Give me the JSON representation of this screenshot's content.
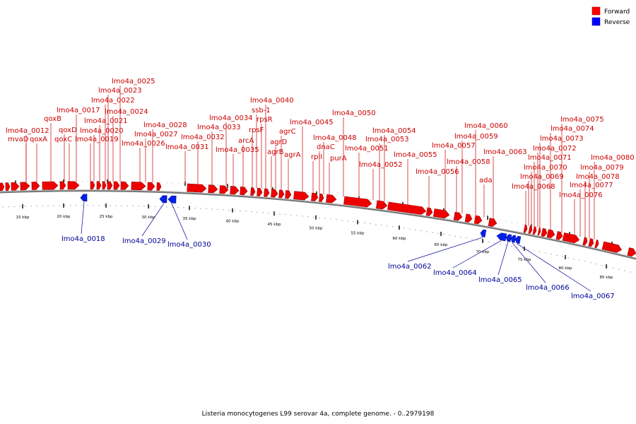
{
  "caption": "Listeria monocytogenes L99 serovar 4a, complete genome. - 0..2979198",
  "legend": {
    "forward": {
      "label": "Forward",
      "color": "#ff0000"
    },
    "reverse": {
      "label": "Reverse",
      "color": "#0000ff"
    }
  },
  "colors": {
    "forward_fill": "#ee0000",
    "forward_stroke": "#990000",
    "reverse_fill": "#0022ee",
    "reverse_stroke": "#000088",
    "forward_label": "#cc0000",
    "reverse_label": "#000099",
    "backbone": "#777777"
  },
  "scale": {
    "tick_labels": [
      "15 kbp",
      "20 kbp",
      "25 kbp",
      "30 kbp",
      "35 kbp",
      "40 kbp",
      "45 kbp",
      "50 kbp",
      "55 kbp",
      "60 kbp",
      "65 kbp",
      "70 kbp",
      "75 kbp",
      "80 kbp",
      "85 kbp"
    ]
  },
  "forward_genes": [
    "lmo4a_0012",
    "mvaD",
    "qoxA",
    "qoxB",
    "qoxD",
    "qoxC",
    "lmo4a_0017",
    "lmo4a_0019",
    "lmo4a_0020",
    "lmo4a_0021",
    "lmo4a_0022",
    "lmo4a_0023",
    "lmo4a_0024",
    "lmo4a_0025",
    "lmo4a_0026",
    "lmo4a_0027",
    "lmo4a_0028",
    "lmo4a_0031",
    "lmo4a_0032",
    "lmo4a_0033",
    "lmo4a_0034",
    "lmo4a_0035",
    "arcA",
    "rpsF",
    "ssb-1",
    "rpsR",
    "lmo4a_0040",
    "agrB",
    "agrD",
    "agrC",
    "agrA",
    "lmo4a_0045",
    "rplI",
    "dnaC",
    "lmo4a_0048",
    "purA",
    "lmo4a_0050",
    "lmo4a_0051",
    "lmo4a_0052",
    "lmo4a_0053",
    "lmo4a_0054",
    "lmo4a_0055",
    "lmo4a_0056",
    "lmo4a_0057",
    "lmo4a_0058",
    "lmo4a_0059",
    "lmo4a_0060",
    "ada",
    "lmo4a_0063",
    "lmo4a_0068",
    "lmo4a_0069",
    "lmo4a_0070",
    "lmo4a_0071",
    "lmo4a_0072",
    "lmo4a_0073",
    "lmo4a_0074",
    "lmo4a_0075",
    "lmo4a_0076",
    "lmo4a_0077",
    "lmo4a_0078",
    "lmo4a_0079",
    "lmo4a_0080"
  ],
  "reverse_genes": [
    "lmo4a_0018",
    "lmo4a_0029",
    "lmo4a_0030",
    "lmo4a_0062",
    "lmo4a_0064",
    "lmo4a_0065",
    "lmo4a_0066",
    "lmo4a_0067"
  ]
}
